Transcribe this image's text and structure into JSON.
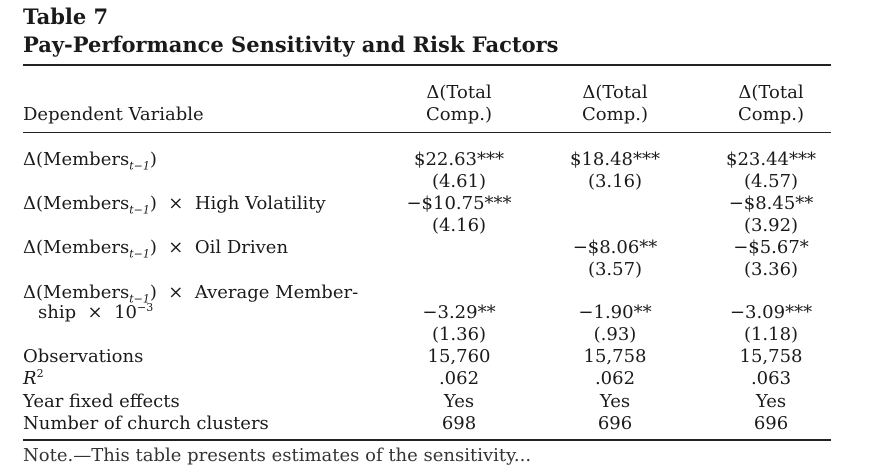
{
  "table_number": "Table 7",
  "title": "Pay-Performance Sensitivity and Risk Factors",
  "header": {
    "dependent_variable": "Dependent Variable",
    "col1": [
      "Δ(Total",
      "Comp.)"
    ],
    "col2": [
      "Δ(Total",
      "Comp.)"
    ],
    "col3": [
      "Δ(Total",
      "Comp.)"
    ]
  },
  "rows": {
    "members": {
      "label_main": "Δ(Members",
      "label_sub": "t−1",
      "label_close": ")",
      "c1": "$22.63***",
      "c1_se": "(4.61)",
      "c2": "$18.48***",
      "c2_se": "(3.16)",
      "c3": "$23.44***",
      "c3_se": "(4.57)"
    },
    "high_vol": {
      "label_main": "Δ(Members",
      "label_sub": "t−1",
      "label_rest": ")  ×  High Volatility",
      "c1": "−$10.75***",
      "c1_se": "(4.16)",
      "c3": "−$8.45**",
      "c3_se": "(3.92)"
    },
    "oil": {
      "label_main": "Δ(Members",
      "label_sub": "t−1",
      "label_rest": ")  ×  Oil Driven",
      "c2": "−$8.06**",
      "c2_se": "(3.57)",
      "c3": "−$5.67*",
      "c3_se": "(3.36)"
    },
    "avg_mem": {
      "label_main": "Δ(Members",
      "label_sub": "t−1",
      "label_rest": ")  ×  Average Member-",
      "label_line2": "ship  ×  10",
      "label_sup": "−3",
      "c1": "−3.29**",
      "c1_se": "(1.36)",
      "c2": "−1.90**",
      "c2_se": "(.93)",
      "c3": "−3.09***",
      "c3_se": "(1.18)"
    },
    "obs": {
      "label": "Observations",
      "c1": "15,760",
      "c2": "15,758",
      "c3": "15,758"
    },
    "r2": {
      "label": "R",
      "label_sup": "2",
      "c1": ".062",
      "c2": ".062",
      "c3": ".063"
    },
    "yfe": {
      "label": "Year fixed effects",
      "c1": "Yes",
      "c2": "Yes",
      "c3": "Yes"
    },
    "clusters": {
      "label": "Number of church clusters",
      "c1": "698",
      "c2": "696",
      "c3": "696"
    }
  },
  "footnote_fragment": "Note.—This table presents estimates of the sensitivity..."
}
